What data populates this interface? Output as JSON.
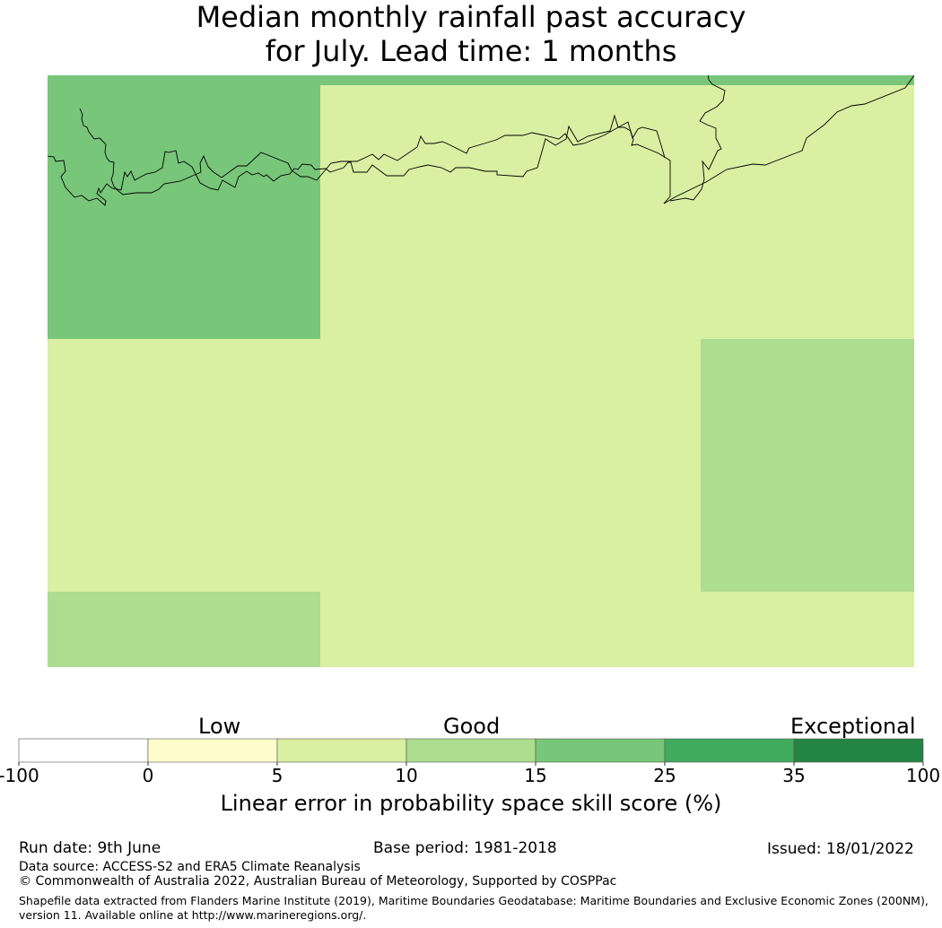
{
  "title": {
    "line1": "Median monthly rainfall past accuracy",
    "line2": "for July. Lead time: 1 months"
  },
  "map": {
    "description_cells": [
      {
        "zone": "northwest",
        "category": "15-25"
      },
      {
        "zone": "main",
        "category": "5-10"
      },
      {
        "zone": "east",
        "category": "10-15"
      },
      {
        "zone": "southwest",
        "category": "10-15"
      }
    ]
  },
  "colorbar": {
    "qualitative_labels": [
      "Low",
      "Good",
      "Exceptional"
    ],
    "bins": [
      {
        "from": -100,
        "to": 0,
        "color": "#ffffff"
      },
      {
        "from": 0,
        "to": 5,
        "color": "#fffccc"
      },
      {
        "from": 5,
        "to": 10,
        "color": "#d9efa2"
      },
      {
        "from": 10,
        "to": 15,
        "color": "#addd8e"
      },
      {
        "from": 15,
        "to": 25,
        "color": "#78c679"
      },
      {
        "from": 25,
        "to": 35,
        "color": "#41ab5d"
      },
      {
        "from": 35,
        "to": 100,
        "color": "#238443"
      }
    ],
    "tick_labels": [
      "-100",
      "0",
      "5",
      "10",
      "15",
      "25",
      "35",
      "100"
    ],
    "axis_label": "Linear error in probability space skill score (%)"
  },
  "footer": {
    "run_date": "Run date: 9th June",
    "base_period": "Base period: 1981-2018",
    "issued": "Issued: 18/01/2022",
    "data_source": "Data source: ACCESS-S2 and ERA5 Climate Reanalysis",
    "copyright": "© Commonwealth of Australia 2022, Australian Bureau of Meteorology, Supported by COSPPac",
    "shapefile": "Shapefile data extracted from Flanders Marine Institute (2019), Maritime Boundaries Geodatabase: Maritime Boundaries and Exclusive Economic Zones (200NM), version 11. Available online at http://www.marineregions.org/."
  }
}
